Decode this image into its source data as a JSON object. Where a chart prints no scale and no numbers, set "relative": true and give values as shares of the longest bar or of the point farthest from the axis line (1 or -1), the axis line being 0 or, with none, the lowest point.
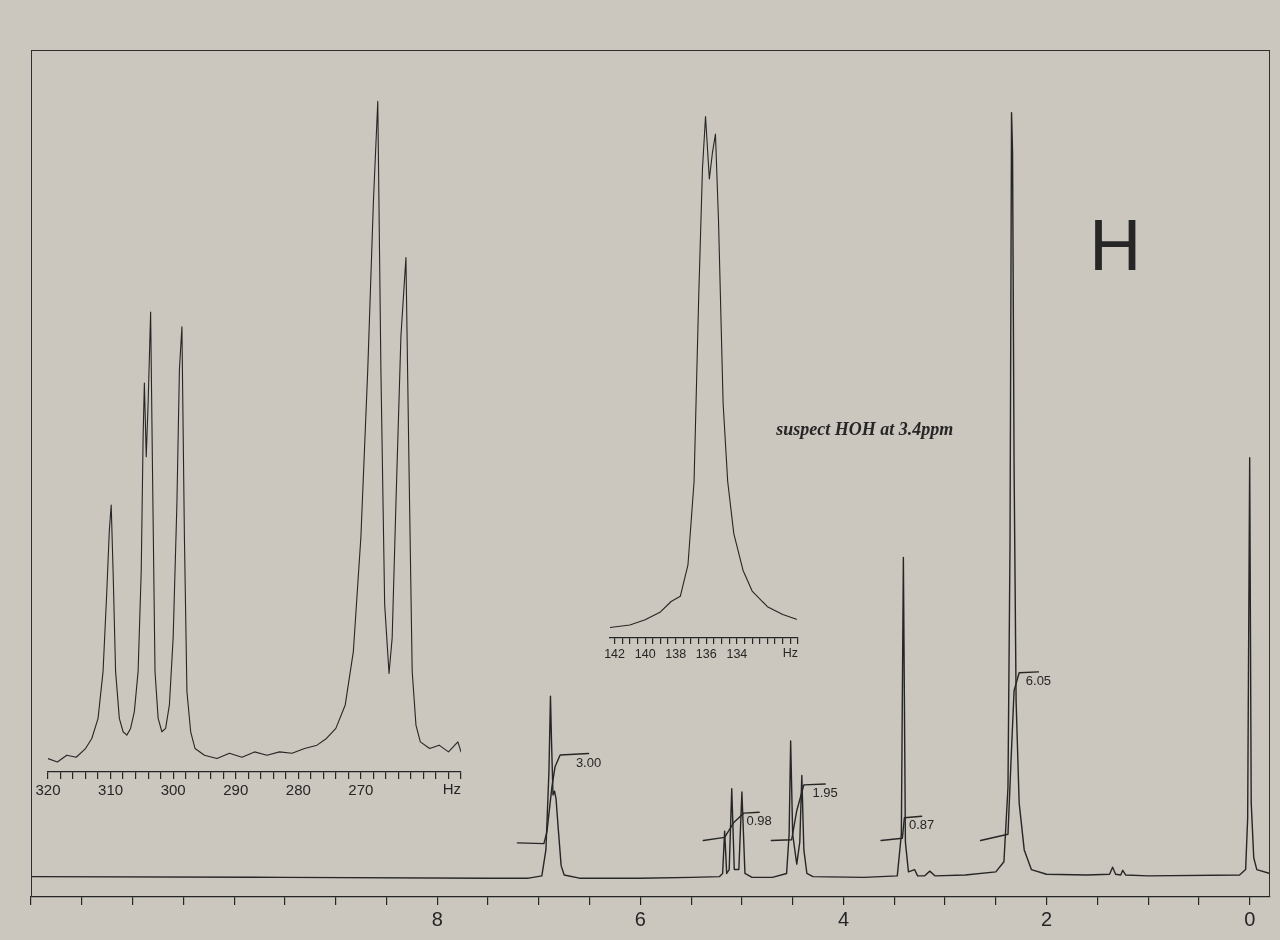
{
  "chart_data": [
    {
      "type": "line",
      "relative": true,
      "xlim": [
        12,
        -0.2
      ],
      "xticks": [
        {
          "value": 12,
          "label": null
        },
        {
          "value": 11.5,
          "label": null
        },
        {
          "value": 11,
          "label": null
        },
        {
          "value": 10.5,
          "label": null
        },
        {
          "value": 10,
          "label": null
        },
        {
          "value": 9.5,
          "label": null
        },
        {
          "value": 9,
          "label": null
        },
        {
          "value": 8.5,
          "label": null
        },
        8,
        {
          "value": 7.5,
          "label": null
        },
        {
          "value": 7,
          "label": null
        },
        {
          "value": 6.5,
          "label": null
        },
        6,
        {
          "value": 5.5,
          "label": null
        },
        {
          "value": 5,
          "label": null
        },
        {
          "value": 4.5,
          "label": null
        },
        4,
        {
          "value": 3.5,
          "label": null
        },
        {
          "value": 3,
          "label": null
        },
        {
          "value": 2.5,
          "label": null
        },
        2,
        {
          "value": 1.5,
          "label": null
        },
        {
          "value": 1,
          "label": null
        },
        {
          "value": 0.5,
          "label": null
        },
        0
      ],
      "series": [
        {
          "color": "#262626",
          "x": [
            12,
            9.5,
            7.5,
            7.1,
            6.97,
            6.93,
            6.9,
            6.885,
            6.875,
            6.86,
            6.845,
            6.83,
            6.81,
            6.78,
            6.75,
            6.6,
            6,
            5.5,
            5.22,
            5.19,
            5.17,
            5.15,
            5.125,
            5.1,
            5.075,
            5.03,
            5,
            4.97,
            4.9,
            4.7,
            4.56,
            4.535,
            4.52,
            4.5,
            4.46,
            4.43,
            4.41,
            4.39,
            4.36,
            4.3,
            3.8,
            3.47,
            3.43,
            3.41,
            3.39,
            3.36,
            3.3,
            3.27,
            3.2,
            3.15,
            3.1,
            2.8,
            2.5,
            2.42,
            2.38,
            2.36,
            2.345,
            2.335,
            2.32,
            2.3,
            2.27,
            2.22,
            2.15,
            2,
            1.6,
            1.38,
            1.35,
            1.32,
            1.27,
            1.25,
            1.22,
            1,
            0.1,
            0.04,
            0.02,
            0,
            -0.015,
            -0.04,
            -0.07,
            -0.2
          ],
          "values": [
            0.026,
            0.025,
            0.024,
            0.024,
            0.027,
            0.06,
            0.16,
            0.256,
            0.2,
            0.13,
            0.135,
            0.125,
            0.09,
            0.04,
            0.028,
            0.024,
            0.024,
            0.025,
            0.026,
            0.03,
            0.084,
            0.03,
            0.035,
            0.138,
            0.035,
            0.035,
            0.134,
            0.03,
            0.025,
            0.025,
            0.03,
            0.08,
            0.199,
            0.08,
            0.042,
            0.07,
            0.155,
            0.06,
            0.03,
            0.026,
            0.025,
            0.027,
            0.08,
            0.433,
            0.07,
            0.032,
            0.035,
            0.027,
            0.027,
            0.033,
            0.027,
            0.028,
            0.032,
            0.045,
            0.14,
            0.45,
            1,
            0.95,
            0.55,
            0.25,
            0.12,
            0.06,
            0.035,
            0.029,
            0.028,
            0.029,
            0.038,
            0.029,
            0.028,
            0.034,
            0.028,
            0.027,
            0.028,
            0.035,
            0.1,
            0.56,
            0.12,
            0.05,
            0.035,
            0.03
          ]
        },
        {
          "color": "#262626",
          "x": [
            7.21,
            6.95,
            6.92,
            6.87,
            6.84,
            6.79,
            6.51
          ],
          "values": [
            0.069,
            0.068,
            0.083,
            0.141,
            0.166,
            0.181,
            0.183
          ]
        },
        {
          "color": "#262626",
          "x": [
            5.38,
            5.17,
            5.08,
            4.98,
            4.83
          ],
          "values": [
            0.072,
            0.076,
            0.095,
            0.107,
            0.108
          ]
        },
        {
          "color": "#262626",
          "x": [
            4.71,
            4.51,
            4.46,
            4.39,
            4.18
          ],
          "values": [
            0.072,
            0.073,
            0.11,
            0.143,
            0.144
          ]
        },
        {
          "color": "#262626",
          "x": [
            3.63,
            3.42,
            3.4,
            3.23
          ],
          "values": [
            0.072,
            0.075,
            0.101,
            0.103
          ]
        },
        {
          "color": "#262626",
          "x": [
            2.65,
            2.38,
            2.35,
            2.32,
            2.27,
            2.08
          ],
          "values": [
            0.072,
            0.08,
            0.174,
            0.263,
            0.286,
            0.287
          ]
        }
      ],
      "annotations": [
        {
          "text": "3.00",
          "x": 6.51,
          "y": 0.183
        },
        {
          "text": "0.98",
          "x": 4.83,
          "y": 0.108
        },
        {
          "text": "1.95",
          "x": 4.18,
          "y": 0.144
        },
        {
          "text": "0.87",
          "x": 3.23,
          "y": 0.103
        },
        {
          "text": "6.05",
          "x": 2.08,
          "y": 0.287
        },
        "suspect HOH at 3.4ppm",
        "H"
      ]
    },
    {
      "type": "line",
      "relative": true,
      "xlim": [
        320,
        254
      ],
      "xlabel": "Hz",
      "xticks": [
        320,
        {
          "value": 318,
          "label": null
        },
        {
          "value": 316,
          "label": null
        },
        {
          "value": 314,
          "label": null
        },
        {
          "value": 312,
          "label": null
        },
        310,
        {
          "value": 308,
          "label": null
        },
        {
          "value": 306,
          "label": null
        },
        {
          "value": 304,
          "label": null
        },
        {
          "value": 302,
          "label": null
        },
        300,
        {
          "value": 298,
          "label": null
        },
        {
          "value": 296,
          "label": null
        },
        {
          "value": 294,
          "label": null
        },
        {
          "value": 292,
          "label": null
        },
        290,
        {
          "value": 288,
          "label": null
        },
        {
          "value": 286,
          "label": null
        },
        {
          "value": 284,
          "label": null
        },
        {
          "value": 282,
          "label": null
        },
        280,
        {
          "value": 278,
          "label": null
        },
        {
          "value": 276,
          "label": null
        },
        {
          "value": 274,
          "label": null
        },
        {
          "value": 272,
          "label": null
        },
        270,
        {
          "value": 268,
          "label": null
        },
        {
          "value": 266,
          "label": null
        },
        {
          "value": 264,
          "label": null
        },
        {
          "value": 262,
          "label": null
        },
        {
          "value": 260,
          "label": null
        },
        {
          "value": 258,
          "label": null
        },
        {
          "value": 256,
          "label": null
        },
        {
          "value": 254,
          "label": null
        }
      ],
      "series": [
        {
          "color": "#262626",
          "x": [
            320,
            318.5,
            317,
            315.5,
            314,
            313,
            312,
            311.2,
            310.6,
            310.2,
            309.9,
            309.6,
            309.2,
            308.6,
            308,
            307.4,
            306.8,
            306.2,
            305.6,
            305.1,
            304.8,
            304.6,
            304.3,
            304,
            303.6,
            303.3,
            302.9,
            302.4,
            301.8,
            301.2,
            300.6,
            300,
            299.4,
            299,
            298.6,
            298.2,
            297.8,
            297.2,
            296.5,
            295,
            293,
            291,
            289,
            287,
            285,
            283,
            281,
            279,
            277,
            275.5,
            274,
            272.5,
            271.2,
            270,
            268.9,
            268,
            267.3,
            266.8,
            266.2,
            265.5,
            265,
            264.4,
            263.6,
            262.8,
            262.3,
            261.8,
            261.2,
            260.5,
            259,
            257.5,
            256,
            254.5,
            254
          ],
          "values": [
            0.02,
            0.015,
            0.025,
            0.022,
            0.035,
            0.05,
            0.08,
            0.15,
            0.27,
            0.36,
            0.398,
            0.3,
            0.15,
            0.08,
            0.06,
            0.055,
            0.065,
            0.09,
            0.15,
            0.3,
            0.5,
            0.58,
            0.47,
            0.55,
            0.686,
            0.45,
            0.15,
            0.08,
            0.06,
            0.065,
            0.1,
            0.2,
            0.4,
            0.6,
            0.664,
            0.35,
            0.12,
            0.06,
            0.035,
            0.025,
            0.02,
            0.028,
            0.022,
            0.03,
            0.025,
            0.03,
            0.028,
            0.035,
            0.04,
            0.05,
            0.065,
            0.1,
            0.18,
            0.35,
            0.6,
            0.85,
            1,
            0.6,
            0.25,
            0.147,
            0.2,
            0.4,
            0.65,
            0.767,
            0.45,
            0.15,
            0.07,
            0.045,
            0.035,
            0.04,
            0.03,
            0.045,
            0.03
          ]
        }
      ]
    },
    {
      "type": "line",
      "relative": true,
      "xlim": [
        142.3,
        130
      ],
      "xlabel": "Hz",
      "xticks": [
        142,
        {
          "value": 141.5,
          "label": null
        },
        {
          "value": 141,
          "label": null
        },
        {
          "value": 140.5,
          "label": null
        },
        140,
        {
          "value": 139.5,
          "label": null
        },
        {
          "value": 139,
          "label": null
        },
        {
          "value": 138.5,
          "label": null
        },
        138,
        {
          "value": 137.5,
          "label": null
        },
        {
          "value": 137,
          "label": null
        },
        {
          "value": 136.5,
          "label": null
        },
        136,
        {
          "value": 135.5,
          "label": null
        },
        {
          "value": 135,
          "label": null
        },
        {
          "value": 134.5,
          "label": null
        },
        134,
        {
          "value": 133.5,
          "label": null
        },
        {
          "value": 133,
          "label": null
        },
        {
          "value": 132.5,
          "label": null
        },
        {
          "value": 132,
          "label": null
        },
        {
          "value": 131.5,
          "label": null
        },
        {
          "value": 131,
          "label": null
        },
        {
          "value": 130.5,
          "label": null
        },
        {
          "value": 130,
          "label": null
        }
      ],
      "series": [
        {
          "color": "#262626",
          "x": [
            142.3,
            141,
            140,
            139,
            138.3,
            137.7,
            137.2,
            136.8,
            136.5,
            136.25,
            136.05,
            135.8,
            135.6,
            135.4,
            135.2,
            134.9,
            134.6,
            134.2,
            133.6,
            133,
            132,
            131,
            130.1
          ],
          "values": [
            0.02,
            0.025,
            0.035,
            0.05,
            0.07,
            0.08,
            0.14,
            0.3,
            0.65,
            0.9,
            1,
            0.88,
            0.93,
            0.966,
            0.8,
            0.45,
            0.3,
            0.2,
            0.13,
            0.09,
            0.06,
            0.045,
            0.036
          ]
        }
      ]
    }
  ]
}
